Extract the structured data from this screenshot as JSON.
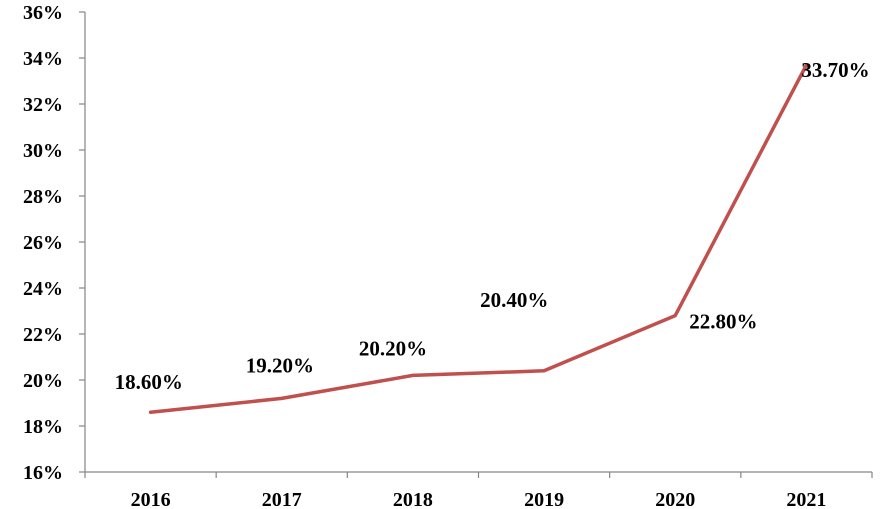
{
  "chart_data": {
    "type": "line",
    "title": "",
    "xlabel": "",
    "ylabel": "",
    "categories": [
      "2016",
      "2017",
      "2018",
      "2019",
      "2020",
      "2021"
    ],
    "series": [
      {
        "values": [
          18.6,
          19.2,
          20.2,
          20.4,
          22.8,
          33.7
        ],
        "labels": [
          "18.60%",
          "19.20%",
          "20.20%",
          "20.40%",
          "22.80%",
          "33.70%"
        ],
        "color": "#c0504d"
      }
    ],
    "y_ticks": [
      "16%",
      "18%",
      "20%",
      "22%",
      "24%",
      "26%",
      "28%",
      "30%",
      "32%",
      "34%",
      "36%"
    ],
    "ylim": [
      16,
      36
    ],
    "grid": false,
    "legend": "none",
    "axis_color": "#868686"
  }
}
